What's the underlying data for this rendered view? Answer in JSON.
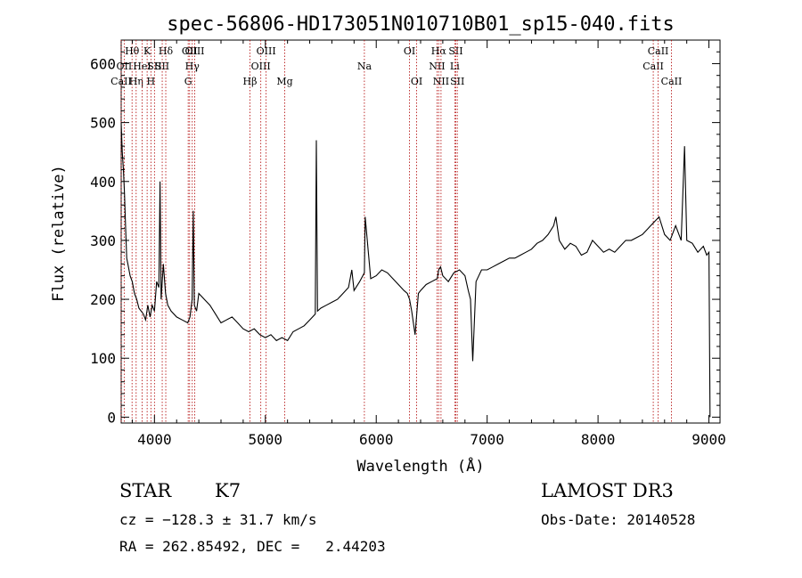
{
  "chart_data": {
    "type": "line",
    "title": "spec-56806-HD173051N010710B01_sp15-040.fits",
    "xlabel": "Wavelength (Å)",
    "ylabel": "Flux (relative)",
    "xlim": [
      3700,
      9100
    ],
    "ylim": [
      -10,
      640
    ],
    "xticks": [
      4000,
      5000,
      6000,
      7000,
      8000,
      9000
    ],
    "yticks": [
      0,
      100,
      200,
      300,
      400,
      500,
      600
    ],
    "series": [
      {
        "name": "flux",
        "x": [
          3700,
          3710,
          3720,
          3730,
          3740,
          3750,
          3760,
          3780,
          3800,
          3820,
          3840,
          3860,
          3880,
          3900,
          3920,
          3940,
          3960,
          3980,
          4000,
          4020,
          4040,
          4050,
          4060,
          4080,
          4100,
          4120,
          4150,
          4200,
          4250,
          4300,
          4320,
          4340,
          4350,
          4360,
          4380,
          4400,
          4450,
          4500,
          4550,
          4600,
          4650,
          4700,
          4750,
          4800,
          4850,
          4900,
          4950,
          5000,
          5050,
          5100,
          5150,
          5200,
          5250,
          5300,
          5350,
          5400,
          5450,
          5460,
          5470,
          5500,
          5550,
          5600,
          5650,
          5700,
          5750,
          5780,
          5800,
          5850,
          5893,
          5900,
          5950,
          6000,
          6050,
          6100,
          6150,
          6200,
          6250,
          6280,
          6300,
          6320,
          6350,
          6380,
          6400,
          6450,
          6500,
          6550,
          6563,
          6580,
          6600,
          6650,
          6700,
          6750,
          6800,
          6830,
          6850,
          6870,
          6900,
          6950,
          7000,
          7050,
          7100,
          7150,
          7200,
          7250,
          7300,
          7350,
          7400,
          7450,
          7500,
          7550,
          7600,
          7620,
          7650,
          7700,
          7750,
          7800,
          7850,
          7900,
          7950,
          8000,
          8050,
          8100,
          8150,
          8200,
          8250,
          8300,
          8350,
          8400,
          8450,
          8500,
          8550,
          8600,
          8650,
          8700,
          8750,
          8780,
          8800,
          8850,
          8900,
          8950,
          8980,
          9000,
          9010
        ],
        "values": [
          500,
          450,
          420,
          380,
          320,
          270,
          260,
          240,
          230,
          210,
          200,
          185,
          180,
          175,
          165,
          190,
          170,
          190,
          180,
          230,
          220,
          400,
          200,
          260,
          210,
          190,
          180,
          170,
          165,
          160,
          170,
          200,
          350,
          190,
          180,
          210,
          200,
          190,
          175,
          160,
          165,
          170,
          160,
          150,
          145,
          150,
          140,
          135,
          140,
          130,
          135,
          130,
          145,
          150,
          155,
          165,
          175,
          470,
          180,
          185,
          190,
          195,
          200,
          210,
          220,
          250,
          215,
          230,
          245,
          340,
          235,
          240,
          250,
          245,
          235,
          225,
          215,
          210,
          200,
          180,
          140,
          210,
          215,
          225,
          230,
          235,
          250,
          255,
          240,
          230,
          245,
          250,
          240,
          215,
          200,
          95,
          230,
          250,
          250,
          255,
          260,
          265,
          270,
          270,
          275,
          280,
          285,
          295,
          300,
          310,
          325,
          340,
          300,
          285,
          295,
          290,
          275,
          280,
          300,
          290,
          280,
          285,
          280,
          290,
          300,
          300,
          305,
          310,
          320,
          330,
          340,
          310,
          300,
          325,
          300,
          460,
          300,
          295,
          280,
          290,
          275,
          280,
          0
        ]
      }
    ],
    "lines": [
      {
        "name": "CaII",
        "wl": 3700,
        "row": 2
      },
      {
        "name": "OII",
        "wl": 3727,
        "row": 1
      },
      {
        "name": "Hθ",
        "wl": 3798,
        "row": 0
      },
      {
        "name": "Hη",
        "wl": 3835,
        "row": 2
      },
      {
        "name": "HeI",
        "wl": 3889,
        "row": 1
      },
      {
        "name": "K",
        "wl": 3934,
        "row": 0
      },
      {
        "name": "H",
        "wl": 3968,
        "row": 2
      },
      {
        "name": "SII",
        "wl": 4000,
        "row": 1
      },
      {
        "name": "Hδ",
        "wl": 4102,
        "row": 0
      },
      {
        "name": "SII",
        "wl": 4070,
        "row": 1
      },
      {
        "name": "G",
        "wl": 4304,
        "row": 2
      },
      {
        "name": "OII",
        "wl": 4317,
        "row": 0
      },
      {
        "name": "Hγ",
        "wl": 4341,
        "row": 1
      },
      {
        "name": "OIII",
        "wl": 4363,
        "row": 0
      },
      {
        "name": "Hβ",
        "wl": 4861,
        "row": 2
      },
      {
        "name": "OIII",
        "wl": 4959,
        "row": 1
      },
      {
        "name": "OIII",
        "wl": 5007,
        "row": 0
      },
      {
        "name": "Mg",
        "wl": 5175,
        "row": 2
      },
      {
        "name": "Na",
        "wl": 5893,
        "row": 1
      },
      {
        "name": "OI",
        "wl": 6300,
        "row": 0
      },
      {
        "name": "OI",
        "wl": 6364,
        "row": 2
      },
      {
        "name": "NII",
        "wl": 6548,
        "row": 1
      },
      {
        "name": "Hα",
        "wl": 6563,
        "row": 0
      },
      {
        "name": "NII",
        "wl": 6584,
        "row": 2
      },
      {
        "name": "SII",
        "wl": 6717,
        "row": 0
      },
      {
        "name": "Li",
        "wl": 6708,
        "row": 1
      },
      {
        "name": "SII",
        "wl": 6731,
        "row": 2
      },
      {
        "name": "CaII",
        "wl": 8498,
        "row": 1
      },
      {
        "name": "CaII",
        "wl": 8542,
        "row": 0
      },
      {
        "name": "CaII",
        "wl": 8662,
        "row": 2
      }
    ]
  },
  "info": {
    "object_class": "STAR",
    "subclass": "K7",
    "survey": "LAMOST DR3",
    "redshift": "cz = −128.3 ± 31.7 km/s",
    "obs_date": "Obs-Date: 20140528",
    "coords": "RA = 262.85492, DEC =   2.44203"
  }
}
